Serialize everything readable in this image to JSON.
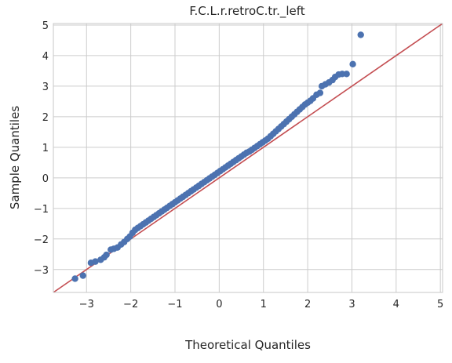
{
  "chart_data": {
    "type": "scatter",
    "title": "F.C.L.r.retroC.tr._left",
    "xlabel": "Theoretical Quantiles",
    "ylabel": "Sample Quantiles",
    "xlim": [
      -3.75,
      5.05
    ],
    "ylim": [
      -3.75,
      5.05
    ],
    "xticks": [
      -3,
      -2,
      -1,
      0,
      1,
      2,
      3,
      4,
      5
    ],
    "yticks": [
      -3,
      -2,
      -1,
      0,
      1,
      2,
      3,
      4,
      5
    ],
    "xtick_labels": [
      "−3",
      "−2",
      "−1",
      "0",
      "1",
      "2",
      "3",
      "4",
      "5"
    ],
    "ytick_labels": [
      "−3",
      "−2",
      "−1",
      "0",
      "1",
      "2",
      "3",
      "4",
      "5"
    ],
    "grid": true,
    "colors": {
      "points": "#4c72b0",
      "reference_line": "#c44e52"
    },
    "reference_line": {
      "x": [
        -3.75,
        5.05
      ],
      "y": [
        -3.75,
        5.05
      ]
    },
    "series": [
      {
        "points": [
          [
            -3.26,
            -3.3
          ],
          [
            -3.08,
            -3.2
          ],
          [
            -2.9,
            -2.78
          ],
          [
            -2.8,
            -2.74
          ],
          [
            -2.68,
            -2.68
          ],
          [
            -2.6,
            -2.6
          ],
          [
            -2.55,
            -2.52
          ],
          [
            -2.45,
            -2.35
          ],
          [
            -2.38,
            -2.32
          ],
          [
            -2.3,
            -2.28
          ],
          [
            -2.22,
            -2.18
          ],
          [
            -2.15,
            -2.1
          ],
          [
            -2.08,
            -2.0
          ],
          [
            -2.02,
            -1.92
          ],
          [
            -1.96,
            -1.8
          ],
          [
            -1.9,
            -1.7
          ],
          [
            -1.84,
            -1.64
          ],
          [
            -1.78,
            -1.58
          ],
          [
            -1.72,
            -1.52
          ],
          [
            -1.66,
            -1.46
          ],
          [
            -1.6,
            -1.4
          ],
          [
            -1.54,
            -1.34
          ],
          [
            -1.48,
            -1.28
          ],
          [
            -1.42,
            -1.22
          ],
          [
            -1.36,
            -1.16
          ],
          [
            -1.3,
            -1.1
          ],
          [
            -1.24,
            -1.04
          ],
          [
            -1.18,
            -0.98
          ],
          [
            -1.12,
            -0.92
          ],
          [
            -1.06,
            -0.86
          ],
          [
            -1.0,
            -0.8
          ],
          [
            -0.94,
            -0.74
          ],
          [
            -0.88,
            -0.68
          ],
          [
            -0.82,
            -0.62
          ],
          [
            -0.76,
            -0.56
          ],
          [
            -0.7,
            -0.5
          ],
          [
            -0.64,
            -0.44
          ],
          [
            -0.58,
            -0.38
          ],
          [
            -0.52,
            -0.32
          ],
          [
            -0.46,
            -0.26
          ],
          [
            -0.4,
            -0.2
          ],
          [
            -0.34,
            -0.14
          ],
          [
            -0.28,
            -0.08
          ],
          [
            -0.22,
            -0.02
          ],
          [
            -0.16,
            0.04
          ],
          [
            -0.1,
            0.1
          ],
          [
            -0.04,
            0.16
          ],
          [
            0.02,
            0.22
          ],
          [
            0.08,
            0.28
          ],
          [
            0.14,
            0.34
          ],
          [
            0.2,
            0.4
          ],
          [
            0.26,
            0.46
          ],
          [
            0.32,
            0.52
          ],
          [
            0.38,
            0.58
          ],
          [
            0.44,
            0.64
          ],
          [
            0.5,
            0.7
          ],
          [
            0.56,
            0.76
          ],
          [
            0.62,
            0.82
          ],
          [
            0.68,
            0.86
          ],
          [
            0.74,
            0.92
          ],
          [
            0.8,
            0.98
          ],
          [
            0.86,
            1.04
          ],
          [
            0.92,
            1.1
          ],
          [
            0.98,
            1.16
          ],
          [
            1.04,
            1.22
          ],
          [
            1.1,
            1.28
          ],
          [
            1.16,
            1.36
          ],
          [
            1.22,
            1.44
          ],
          [
            1.28,
            1.52
          ],
          [
            1.34,
            1.6
          ],
          [
            1.4,
            1.68
          ],
          [
            1.46,
            1.76
          ],
          [
            1.52,
            1.84
          ],
          [
            1.58,
            1.92
          ],
          [
            1.64,
            2.0
          ],
          [
            1.7,
            2.08
          ],
          [
            1.76,
            2.16
          ],
          [
            1.82,
            2.24
          ],
          [
            1.88,
            2.32
          ],
          [
            1.94,
            2.4
          ],
          [
            2.0,
            2.46
          ],
          [
            2.06,
            2.52
          ],
          [
            2.12,
            2.6
          ],
          [
            2.2,
            2.72
          ],
          [
            2.28,
            2.78
          ],
          [
            2.32,
            3.0
          ],
          [
            2.4,
            3.06
          ],
          [
            2.48,
            3.12
          ],
          [
            2.56,
            3.2
          ],
          [
            2.62,
            3.3
          ],
          [
            2.7,
            3.38
          ],
          [
            2.78,
            3.4
          ],
          [
            2.88,
            3.4
          ],
          [
            3.02,
            3.72
          ],
          [
            3.2,
            4.68
          ]
        ]
      }
    ]
  }
}
